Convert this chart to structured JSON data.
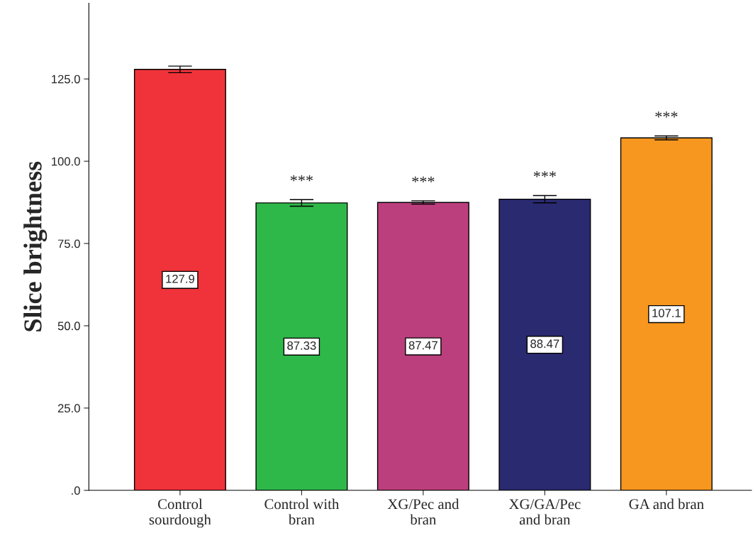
{
  "chart_data": {
    "type": "bar",
    "ylabel": "Slice brightness",
    "categories": [
      "Control\nsourdough",
      "Control with\nbran",
      "XG/Pec and\nbran",
      "XG/GA/Pec\nand bran",
      "GA and bran"
    ],
    "values": [
      127.9,
      87.33,
      87.47,
      88.47,
      107.1
    ],
    "colors": [
      "#f0323a",
      "#2fb84a",
      "#bc3f7d",
      "#2a2a70",
      "#f7971f"
    ],
    "errors": [
      1.0,
      1.0,
      0.5,
      1.1,
      0.6
    ],
    "data_labels": true,
    "ylim": [
      0,
      148
    ],
    "yticks": [
      {
        "value": 0,
        "label": ".0"
      },
      {
        "value": 25,
        "label": "25.0"
      },
      {
        "value": 50,
        "label": "50.0"
      },
      {
        "value": 75,
        "label": "75.0"
      },
      {
        "value": 100,
        "label": "100.0"
      },
      {
        "value": 125,
        "label": "125.0"
      }
    ],
    "annotations": [
      "***",
      "***",
      "***",
      "***"
    ],
    "grid": false
  }
}
